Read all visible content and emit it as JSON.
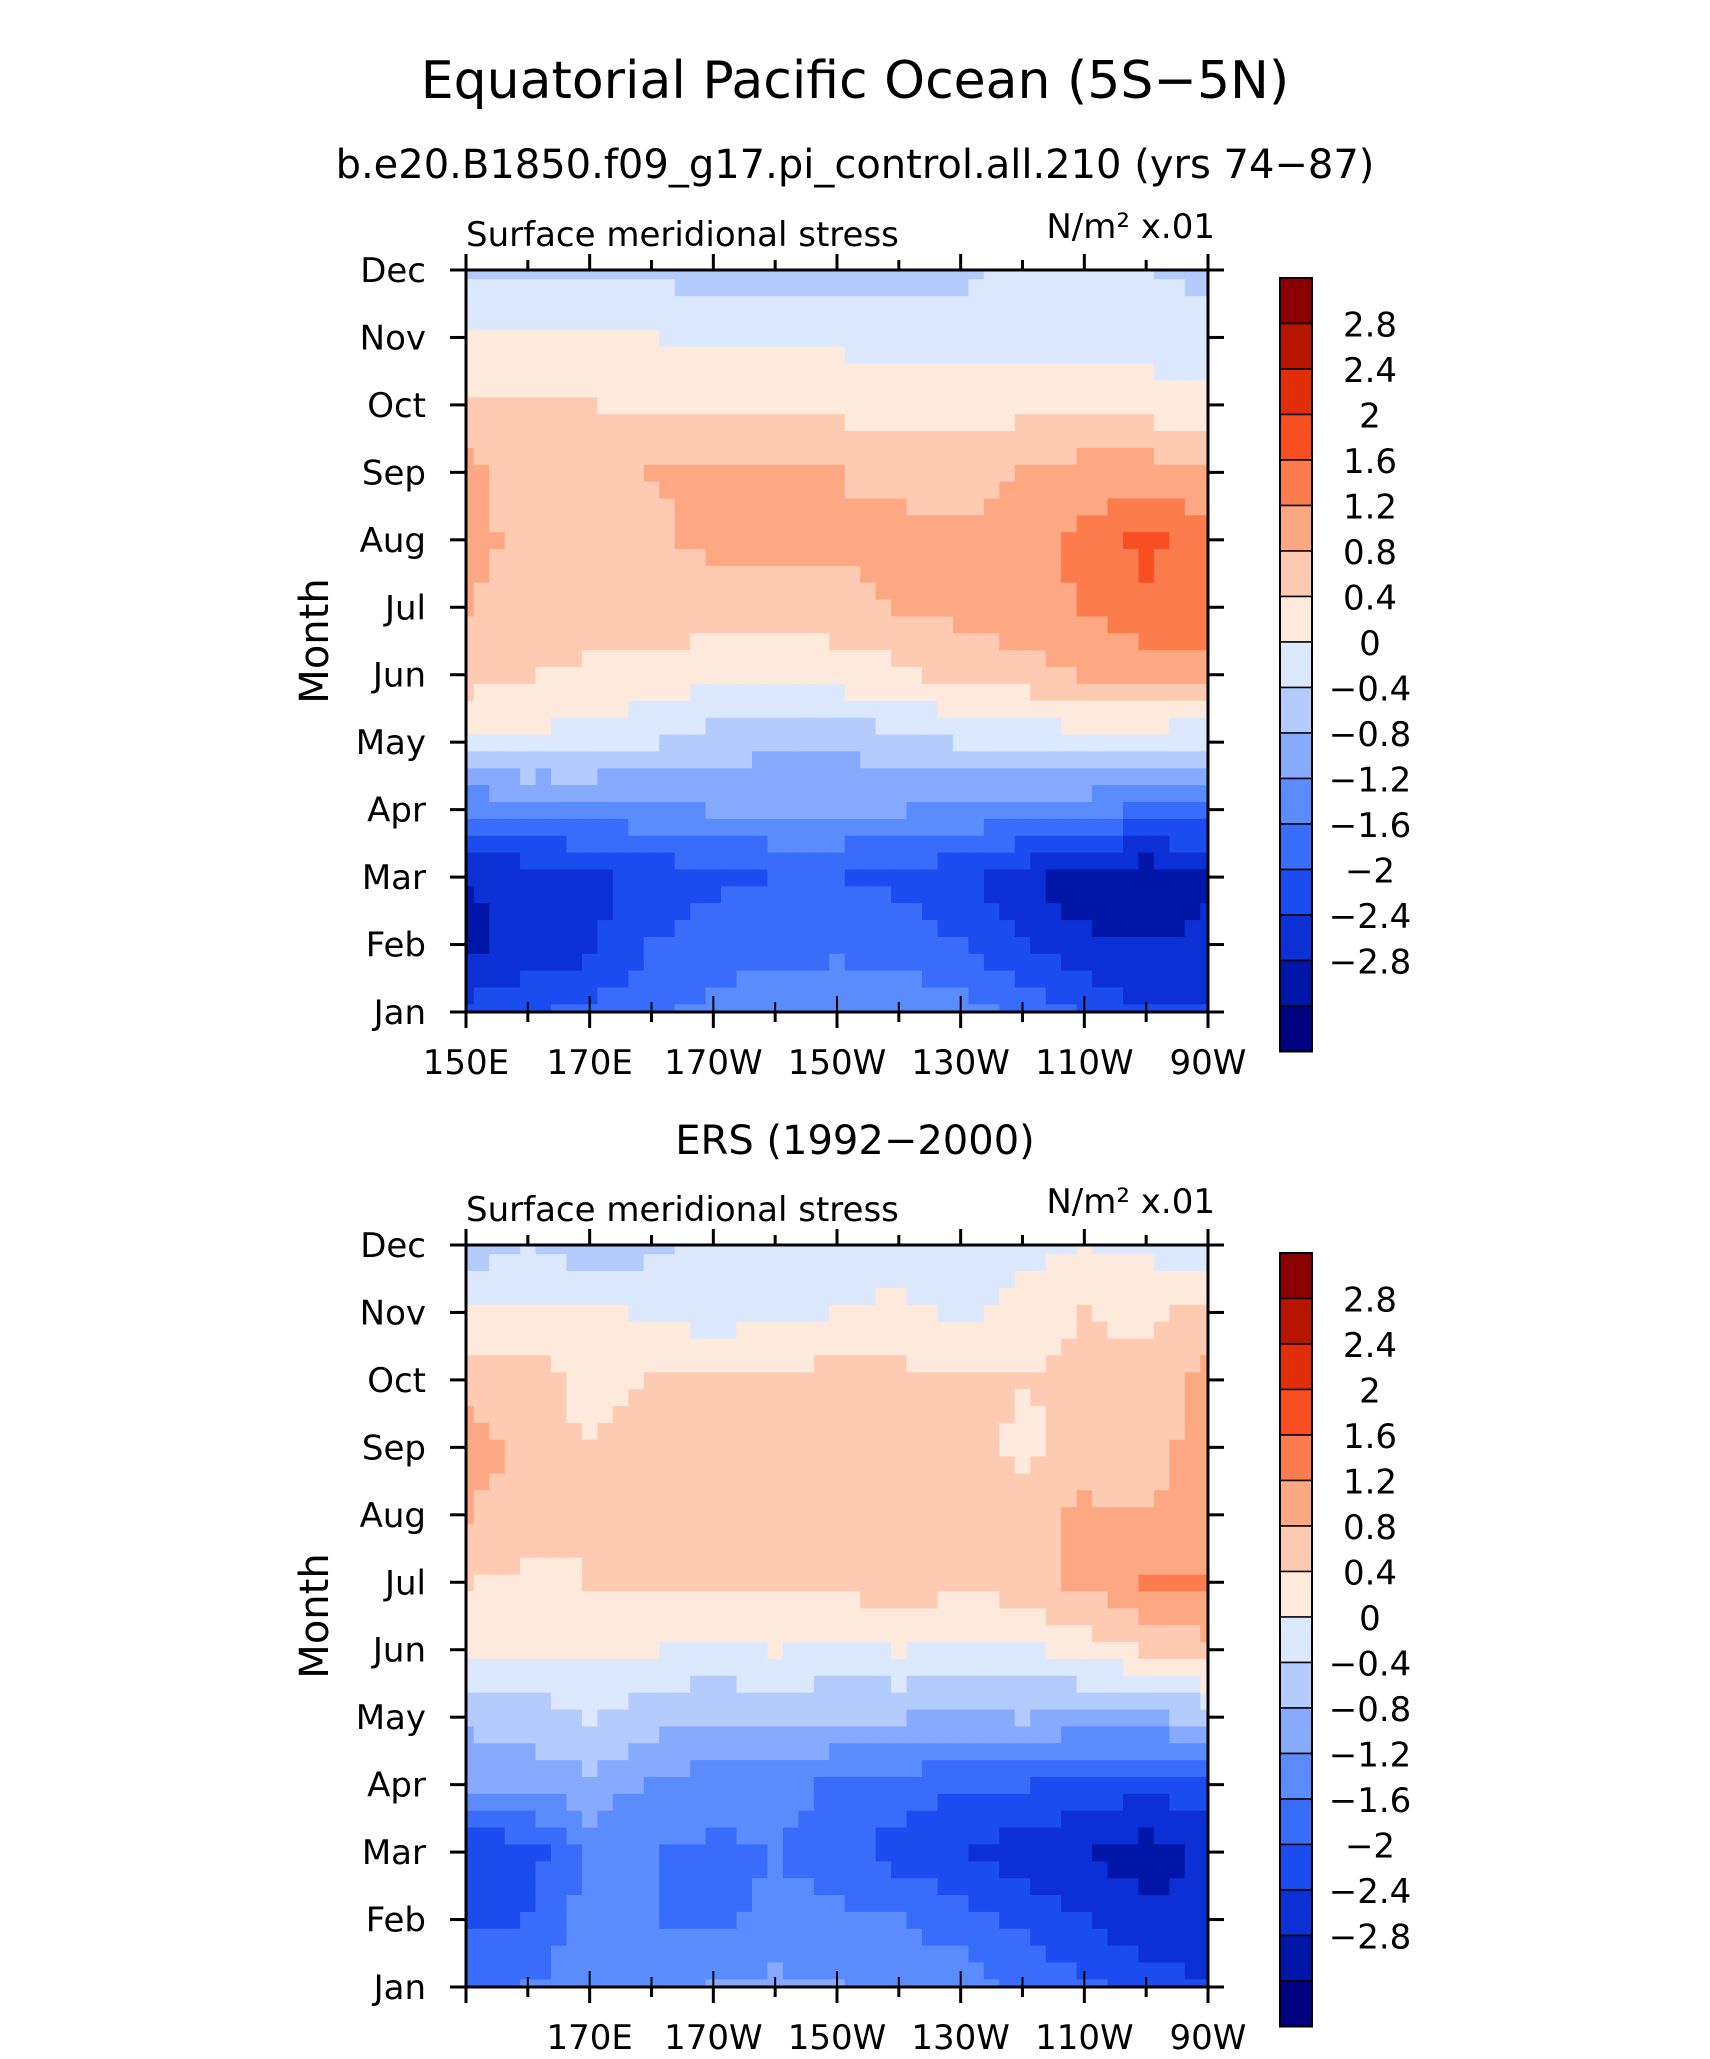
{
  "header": {
    "title": "Equatorial Pacific Ocean (5S−5N)",
    "subtitle": "b.e20.B1850.f09_g17.pi_control.all.210 (yrs 74−87)"
  },
  "colorbar": {
    "colors": [
      "#000080",
      "#0016a8",
      "#0a30d6",
      "#1a4cf0",
      "#3a6cfc",
      "#5a8cfd",
      "#86aafd",
      "#b4cbfd",
      "#dbe8fd",
      "#feeadd",
      "#fecbb2",
      "#fda882",
      "#fc7c4e",
      "#f84e22",
      "#e22e08",
      "#b81500",
      "#8a0000"
    ],
    "labels": [
      "−2.8",
      "−2.4",
      "−2",
      "−1.6",
      "−1.2",
      "−0.8",
      "−0.4",
      "0",
      "0.4",
      "0.8",
      "1.2",
      "1.6",
      "2",
      "2.4",
      "2.8"
    ]
  },
  "chart_data": [
    {
      "type": "heatmap",
      "title": "",
      "left_label": "Surface meridional stress",
      "right_label": "N/m² x.01",
      "xlabel": "",
      "ylabel": "Month",
      "x_tick_labels": [
        "150E",
        "170E",
        "170W",
        "150W",
        "130W",
        "110W",
        "90W"
      ],
      "months": [
        "Jan",
        "Feb",
        "Mar",
        "Apr",
        "May",
        "Jun",
        "Jul",
        "Aug",
        "Sep",
        "Oct",
        "Nov",
        "Dec"
      ],
      "x_centers": [
        150,
        160,
        170,
        180,
        190,
        200,
        210,
        220,
        230,
        240,
        250,
        260,
        270
      ],
      "values": [
        [
          -1.9,
          -1.7,
          -1.5,
          -1.3,
          -1.1,
          -1.0,
          -0.9,
          -0.9,
          -1.0,
          -1.3,
          -1.7,
          -2.0,
          -2.0
        ],
        [
          -2.5,
          -2.3,
          -2.1,
          -1.6,
          -1.4,
          -1.3,
          -1.3,
          -1.4,
          -1.6,
          -2.0,
          -2.3,
          -2.4,
          -2.3
        ],
        [
          -2.4,
          -2.3,
          -2.1,
          -1.9,
          -1.7,
          -1.6,
          -1.6,
          -1.7,
          -1.9,
          -2.3,
          -2.7,
          -2.8,
          -2.5
        ],
        [
          -1.2,
          -1.1,
          -1.0,
          -0.9,
          -0.8,
          -0.8,
          -0.8,
          -0.8,
          -0.9,
          -1.0,
          -1.1,
          -1.3,
          -1.4
        ],
        [
          0.3,
          0.3,
          0.2,
          0.0,
          -0.2,
          -0.3,
          -0.3,
          -0.2,
          0.0,
          0.1,
          0.2,
          0.1,
          0.0
        ],
        [
          1.0,
          0.8,
          0.7,
          0.7,
          0.5,
          0.5,
          0.6,
          0.7,
          0.9,
          1.0,
          1.2,
          1.4,
          1.4
        ],
        [
          1.2,
          1.1,
          1.0,
          1.0,
          1.0,
          0.9,
          1.0,
          1.2,
          1.3,
          1.5,
          1.6,
          1.9,
          1.9
        ],
        [
          1.3,
          1.1,
          1.1,
          1.1,
          1.3,
          1.3,
          1.3,
          1.4,
          1.3,
          1.4,
          1.7,
          2.1,
          1.8
        ],
        [
          1.3,
          1.0,
          1.1,
          1.2,
          1.3,
          1.3,
          1.2,
          1.0,
          1.0,
          1.2,
          1.4,
          1.4,
          1.2
        ],
        [
          0.9,
          0.8,
          0.8,
          0.7,
          0.7,
          0.7,
          0.7,
          0.6,
          0.6,
          0.7,
          0.7,
          0.6,
          0.5
        ],
        [
          0.4,
          0.4,
          0.4,
          0.4,
          0.3,
          0.3,
          0.3,
          0.3,
          0.2,
          0.2,
          0.2,
          0.2,
          0.1
        ],
        [
          -0.1,
          -0.1,
          -0.1,
          -0.1,
          -0.2,
          -0.2,
          -0.2,
          -0.2,
          -0.1,
          0.1,
          0.1,
          0.0,
          -0.1
        ]
      ]
    },
    {
      "type": "heatmap",
      "title": "ERS (1992−2000)",
      "left_label": "Surface meridional stress",
      "right_label": "N/m² x.01",
      "xlabel": "",
      "ylabel": "Month",
      "x_tick_labels": [
        "",
        "170E",
        "170W",
        "150W",
        "130W",
        "110W",
        "90W"
      ],
      "months": [
        "Jan",
        "Feb",
        "Mar",
        "Apr",
        "May",
        "Jun",
        "Jul",
        "Aug",
        "Sep",
        "Oct",
        "Nov",
        "Dec"
      ],
      "x_centers": [
        150,
        160,
        170,
        180,
        190,
        200,
        210,
        220,
        230,
        240,
        250,
        260,
        270
      ],
      "values": [
        [
          -1.3,
          -1.2,
          -0.9,
          -0.9,
          -0.8,
          -0.7,
          -0.8,
          -0.9,
          -1.0,
          -1.3,
          -1.5,
          -1.8,
          -2.0
        ],
        [
          -1.7,
          -1.6,
          -1.0,
          -1.2,
          -1.3,
          -1.1,
          -1.1,
          -1.2,
          -1.4,
          -1.7,
          -2.0,
          -2.3,
          -2.3
        ],
        [
          -2.0,
          -1.8,
          -1.1,
          -1.2,
          -1.3,
          -1.2,
          -1.4,
          -1.8,
          -2.0,
          -2.2,
          -2.4,
          -2.6,
          -2.3
        ],
        [
          -0.8,
          -0.7,
          -0.5,
          -0.9,
          -1.0,
          -1.0,
          -1.3,
          -1.4,
          -1.6,
          -1.6,
          -1.7,
          -1.9,
          -1.8
        ],
        [
          -0.3,
          -0.2,
          0.0,
          -0.2,
          -0.4,
          -0.3,
          -0.4,
          -0.4,
          -0.5,
          -0.4,
          -0.6,
          -0.5,
          -0.3
        ],
        [
          0.6,
          0.4,
          0.5,
          0.4,
          0.3,
          0.4,
          0.3,
          0.4,
          0.3,
          0.3,
          0.6,
          0.8,
          1.1
        ],
        [
          0.8,
          0.7,
          0.8,
          0.8,
          0.9,
          0.8,
          0.9,
          1.0,
          0.9,
          1.0,
          1.3,
          1.6,
          1.6
        ],
        [
          1.2,
          1.0,
          0.8,
          1.0,
          0.9,
          0.9,
          1.1,
          1.1,
          1.0,
          0.9,
          1.3,
          1.2,
          1.5
        ],
        [
          1.4,
          1.1,
          0.8,
          1.1,
          1.0,
          1.0,
          1.1,
          1.1,
          1.0,
          0.7,
          0.9,
          1.0,
          1.4
        ],
        [
          1.0,
          1.0,
          0.6,
          0.8,
          0.9,
          0.8,
          1.0,
          0.9,
          0.9,
          0.8,
          0.9,
          0.9,
          1.3
        ],
        [
          0.4,
          0.5,
          0.5,
          0.3,
          0.2,
          0.3,
          0.4,
          0.5,
          0.3,
          0.5,
          0.8,
          0.7,
          0.9
        ],
        [
          -0.2,
          0.0,
          -0.3,
          -0.1,
          0.2,
          0.1,
          0.1,
          0.2,
          0.2,
          0.3,
          0.4,
          0.3,
          0.2
        ]
      ]
    }
  ]
}
